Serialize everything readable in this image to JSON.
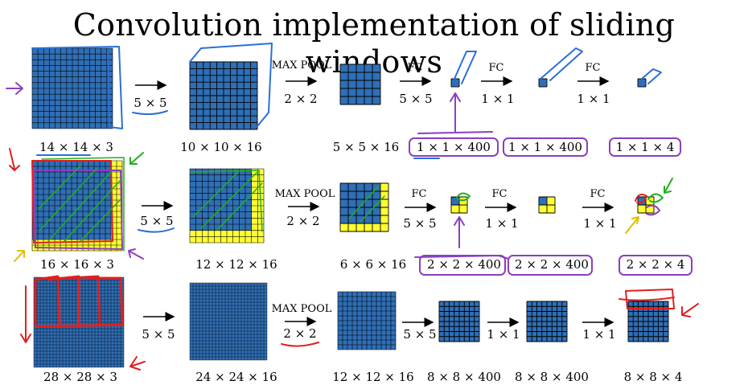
{
  "title": "Convolution implementation of sliding windows",
  "colors": {
    "blue": "#2f6fb6",
    "yellow": "#ffff33",
    "grid": "#000000"
  },
  "rows": [
    {
      "labels": [
        "14 × 14 × 3",
        "10 × 10 × 16",
        "5 × 5 × 16",
        "1 × 1 × 400",
        "1 × 1 × 400",
        "1 × 1 × 4"
      ],
      "ops": [
        {
          "top": "",
          "bottom": "5 × 5"
        },
        {
          "top": "MAX POOL",
          "bottom": "2 × 2"
        },
        {
          "top": "FC",
          "bottom": "5 × 5"
        },
        {
          "top": "FC",
          "bottom": "1 × 1"
        },
        {
          "top": "FC",
          "bottom": "1 × 1"
        }
      ]
    },
    {
      "labels": [
        "16 × 16 × 3",
        "12 × 12 × 16",
        "6 × 6 × 16",
        "2 × 2 × 400",
        "2 × 2 × 400",
        "2 × 2 × 4"
      ],
      "ops": [
        {
          "top": "",
          "bottom": "5 × 5"
        },
        {
          "top": "MAX POOL",
          "bottom": "2 × 2"
        },
        {
          "top": "FC",
          "bottom": "5 × 5"
        },
        {
          "top": "FC",
          "bottom": "1 × 1"
        },
        {
          "top": "FC",
          "bottom": "1 × 1"
        }
      ]
    },
    {
      "labels": [
        "28 × 28 × 3",
        "24 × 24 × 16",
        "12 × 12 × 16",
        "8 × 8 × 400",
        "8 × 8 × 400",
        "8 × 8 × 4"
      ],
      "ops": [
        {
          "top": "",
          "bottom": "5 × 5"
        },
        {
          "top": "MAX POOL",
          "bottom": "2 × 2"
        },
        {
          "top": "",
          "bottom": "5 × 5"
        },
        {
          "top": "",
          "bottom": "1 × 1"
        },
        {
          "top": "",
          "bottom": "1 × 1"
        }
      ]
    }
  ]
}
